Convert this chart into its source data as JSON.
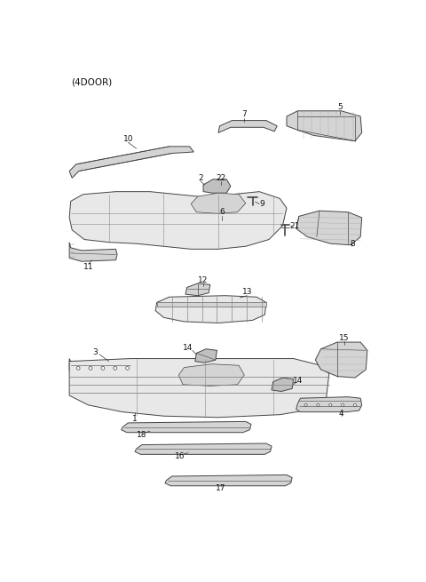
{
  "title": "(4DOOR)",
  "bg": "#ffffff",
  "lc": "#444444",
  "fc_light": "#e8e8e8",
  "fc_mid": "#d4d4d4",
  "fc_dark": "#c0c0c0",
  "fig_w": 4.8,
  "fig_h": 6.55,
  "dpi": 100,
  "label_fs": 6.5,
  "leader_lw": 0.5,
  "part_lw": 0.7
}
